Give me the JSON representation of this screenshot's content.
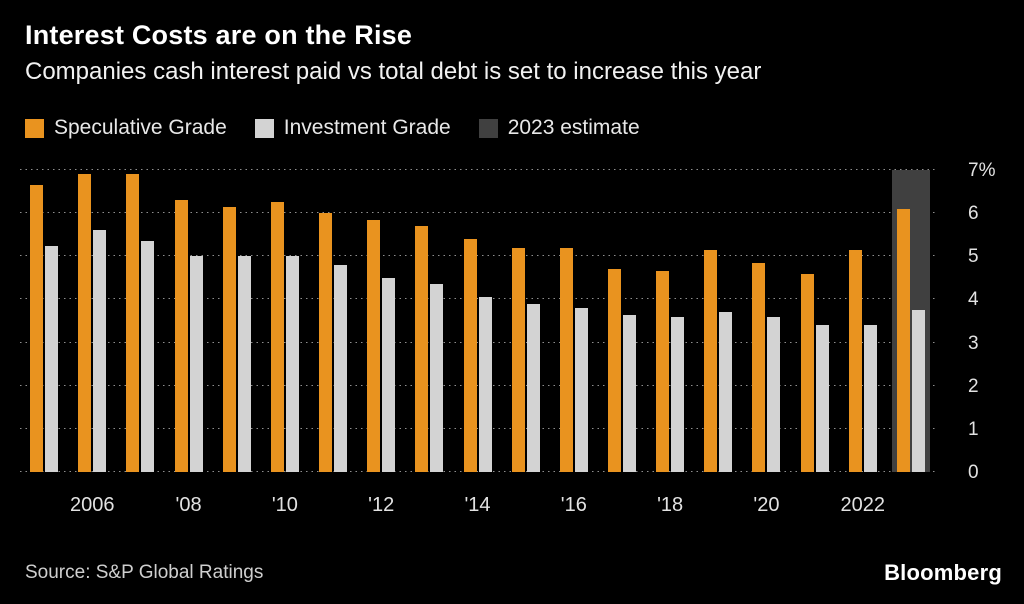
{
  "header": {
    "title": "Interest Costs are on the Rise",
    "subtitle": "Companies cash interest paid vs total debt is set to increase this year"
  },
  "legend": [
    {
      "label": "Speculative Grade",
      "color": "#E9931F",
      "name": "speculative-grade"
    },
    {
      "label": "Investment Grade",
      "color": "#D3D3D3",
      "name": "investment-grade"
    },
    {
      "label": "2023 estimate",
      "color": "#404040",
      "name": "estimate-2023"
    }
  ],
  "footer": {
    "source": "Source: S&P Global Ratings",
    "brand": "Bloomberg"
  },
  "chart_data": {
    "type": "bar",
    "title": "Interest Costs are on the Rise",
    "subtitle": "Companies cash interest paid vs total debt is set to increase this year",
    "unit": "%",
    "categories": [
      "2005",
      "2006",
      "2007",
      "2008",
      "2009",
      "2010",
      "2011",
      "2012",
      "2013",
      "2014",
      "2015",
      "2016",
      "2017",
      "2018",
      "2019",
      "2020",
      "2021",
      "2022",
      "2023"
    ],
    "series": [
      {
        "name": "Speculative Grade",
        "color": "#E9931F",
        "values": [
          6.65,
          6.9,
          6.9,
          6.3,
          6.15,
          6.25,
          6.0,
          5.85,
          5.7,
          5.4,
          5.2,
          5.2,
          4.7,
          4.65,
          5.15,
          4.85,
          4.6,
          5.15,
          6.1
        ]
      },
      {
        "name": "Investment Grade",
        "color": "#D3D3D3",
        "values": [
          5.25,
          5.6,
          5.35,
          5.0,
          5.0,
          5.0,
          4.8,
          4.5,
          4.35,
          4.05,
          3.9,
          3.8,
          3.65,
          3.6,
          3.7,
          3.6,
          3.4,
          3.4,
          3.75
        ]
      }
    ],
    "estimate_band": {
      "label": "2023 estimate",
      "category": "2023",
      "color": "#404040",
      "top": 7
    },
    "ylim": [
      0,
      7
    ],
    "ytick_values": [
      7,
      6,
      5,
      4,
      3,
      2,
      1,
      0
    ],
    "ytick_labels": [
      "7%",
      "6",
      "5",
      "4",
      "3",
      "2",
      "1",
      "0"
    ],
    "xtick_labels": [
      "2006",
      "'08",
      "'10",
      "'12",
      "'14",
      "'16",
      "'18",
      "'20",
      "2022"
    ],
    "xtick_category_indices": [
      1,
      3,
      5,
      7,
      9,
      11,
      13,
      15,
      17
    ],
    "grid": "dotted-horizontal",
    "legend_position": "top-left",
    "source": "Source: S&P Global Ratings",
    "brand": "Bloomberg"
  }
}
